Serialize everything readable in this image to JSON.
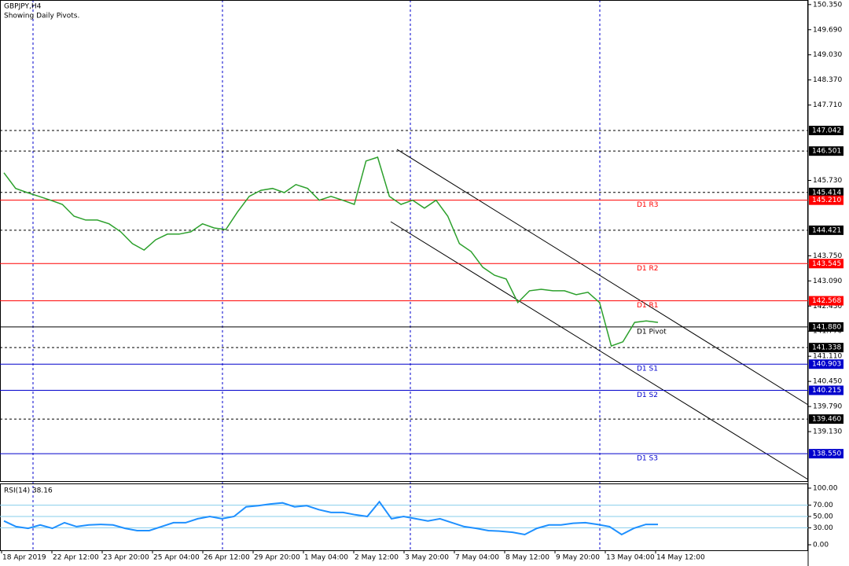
{
  "chart_data": [
    {
      "type": "line",
      "title": "GBPJPY,H4",
      "subtitle": "Showing Daily Pivots.",
      "x_labels": [
        "18 Apr 2019",
        "22 Apr 12:00",
        "23 Apr 20:00",
        "25 Apr 04:00",
        "26 Apr 12:00",
        "29 Apr 20:00",
        "1 May 04:00",
        "2 May 12:00",
        "3 May 20:00",
        "7 May 04:00",
        "8 May 12:00",
        "9 May 20:00",
        "13 May 04:00",
        "14 May 12:00"
      ],
      "color": "#2ca02c",
      "values": [
        145.93,
        145.52,
        145.41,
        145.31,
        145.21,
        145.1,
        144.79,
        144.69,
        144.69,
        144.59,
        144.38,
        144.07,
        143.9,
        144.17,
        144.32,
        144.32,
        144.38,
        144.59,
        144.48,
        144.44,
        144.9,
        145.31,
        145.47,
        145.52,
        145.41,
        145.62,
        145.52,
        145.21,
        145.31,
        145.21,
        145.1,
        146.24,
        146.34,
        145.31,
        145.1,
        145.21,
        145.0,
        145.21,
        144.79,
        144.07,
        143.86,
        143.45,
        143.24,
        143.14,
        142.52,
        142.83,
        142.87,
        142.83,
        142.83,
        142.73,
        142.79,
        142.52,
        141.38,
        141.49,
        142.0,
        142.04,
        142.0
      ],
      "ylim": [
        137.83,
        150.47
      ],
      "yticks": [
        {
          "value": 150.35,
          "label": "150.350"
        },
        {
          "value": 149.69,
          "label": "149.690"
        },
        {
          "value": 149.03,
          "label": "149.030"
        },
        {
          "value": 148.37,
          "label": "148.370"
        },
        {
          "value": 147.71,
          "label": "147.710"
        },
        {
          "value": 145.73,
          "label": "145.730"
        },
        {
          "value": 143.75,
          "label": "143.750"
        },
        {
          "value": 143.09,
          "label": "143.090"
        },
        {
          "value": 142.43,
          "label": "142.430"
        },
        {
          "value": 141.77,
          "label": "141.770"
        },
        {
          "value": 141.11,
          "label": "141.110"
        },
        {
          "value": 140.45,
          "label": "140.450"
        },
        {
          "value": 139.79,
          "label": "139.790"
        },
        {
          "value": 139.13,
          "label": "139.130"
        }
      ],
      "levels": [
        {
          "value": 147.042,
          "label": "147.042",
          "color": "#000000",
          "style": "dashed"
        },
        {
          "value": 146.501,
          "label": "146.501",
          "color": "#000000",
          "style": "dashed"
        },
        {
          "value": 145.414,
          "label": "145.414",
          "color": "#000000",
          "style": "dashed"
        },
        {
          "value": 145.21,
          "label": "145.210",
          "color": "#ff0000",
          "style": "solid",
          "name": "D1 R3"
        },
        {
          "value": 144.421,
          "label": "144.421",
          "color": "#000000",
          "style": "dashed"
        },
        {
          "value": 143.545,
          "label": "143.545",
          "color": "#ff0000",
          "style": "solid",
          "name": "D1 R2"
        },
        {
          "value": 142.568,
          "label": "142.568",
          "color": "#ff0000",
          "style": "solid",
          "name": "D1 R1"
        },
        {
          "value": 141.88,
          "label": "141.880",
          "color": "#000000",
          "style": "solid",
          "name": "D1 Pivot"
        },
        {
          "value": 141.338,
          "label": "141.338",
          "color": "#000000",
          "style": "dashed"
        },
        {
          "value": 140.903,
          "label": "140.903",
          "color": "#0000cc",
          "style": "solid",
          "name": "D1 S1"
        },
        {
          "value": 140.215,
          "label": "140.215",
          "color": "#0000cc",
          "style": "solid",
          "name": "D1 S2"
        },
        {
          "value": 139.46,
          "label": "139.460",
          "color": "#000000",
          "style": "dashed"
        },
        {
          "value": 138.55,
          "label": "138.550",
          "color": "#0000cc",
          "style": "solid",
          "name": "D1 S3"
        }
      ]
    },
    {
      "type": "line",
      "title": "RSI(14) 38.16",
      "color": "#1e90ff",
      "values": [
        42,
        32,
        29,
        35,
        29,
        39,
        32,
        35,
        36,
        35,
        29,
        25,
        25,
        32,
        39,
        39,
        46,
        50,
        46,
        50,
        67,
        69,
        72,
        74,
        67,
        69,
        62,
        57,
        57,
        53,
        50,
        76,
        46,
        50,
        46,
        42,
        46,
        39,
        32,
        29,
        25,
        24,
        22,
        18,
        29,
        35,
        35,
        38,
        39,
        36,
        32,
        18,
        29,
        36,
        36
      ],
      "ylim": [
        -26.4,
        106.9
      ],
      "yticks": [
        {
          "value": 100,
          "label": "100.00"
        },
        {
          "value": 70,
          "label": "70.00"
        },
        {
          "value": 50,
          "label": "50.00"
        },
        {
          "value": 30,
          "label": "30.00"
        },
        {
          "value": 0,
          "label": "0.00"
        }
      ],
      "hlines": [
        70,
        50,
        30
      ]
    }
  ]
}
